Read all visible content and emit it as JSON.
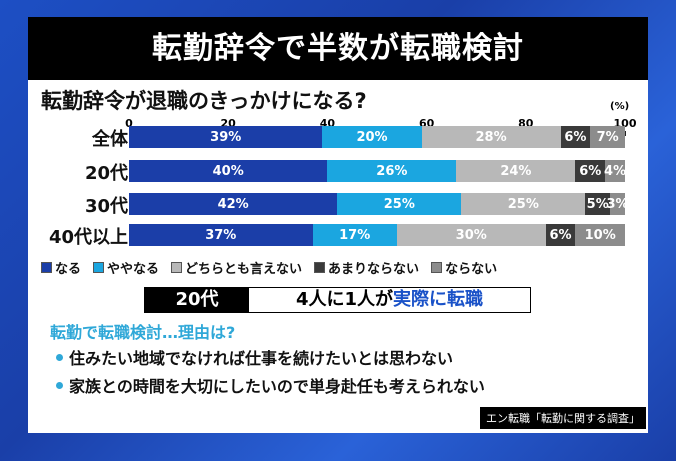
{
  "title": "転勤辞令で半数が転職検討",
  "chart_data": {
    "type": "bar",
    "stacked": true,
    "orientation": "horizontal",
    "title": "転勤辞令が退職のきっかけになる?",
    "unit": "(%)",
    "xlim": [
      0,
      100
    ],
    "ticks": [
      "0",
      "20",
      "40",
      "60",
      "80",
      "100"
    ],
    "categories": [
      "全体",
      "20代",
      "30代",
      "40代以上"
    ],
    "legend_position": "bottom",
    "series": [
      {
        "name": "なる",
        "color": "#1b3ea8",
        "values": [
          39,
          40,
          42,
          37
        ]
      },
      {
        "name": "ややなる",
        "color": "#1ba6e0",
        "values": [
          20,
          26,
          25,
          17
        ]
      },
      {
        "name": "どちらとも言えない",
        "color": "#b8b8b8",
        "values": [
          28,
          24,
          25,
          30
        ]
      },
      {
        "name": "あまりならない",
        "color": "#3a3a3a",
        "values": [
          6,
          6,
          5,
          6
        ]
      },
      {
        "name": "ならない",
        "color": "#8c8c8c",
        "values": [
          7,
          4,
          3,
          10
        ]
      }
    ]
  },
  "banner": {
    "age": "20代",
    "text": "4人に1人が",
    "highlight": "実際に転職"
  },
  "reasons": {
    "heading": "転勤で転職検討…理由は?",
    "items": [
      "住みたい地域でなければ仕事を続けたいとは思わない",
      "家族との時間を大切にしたいので単身赴任も考えられない"
    ]
  },
  "source": "エン転職「転勤に関する調査」"
}
